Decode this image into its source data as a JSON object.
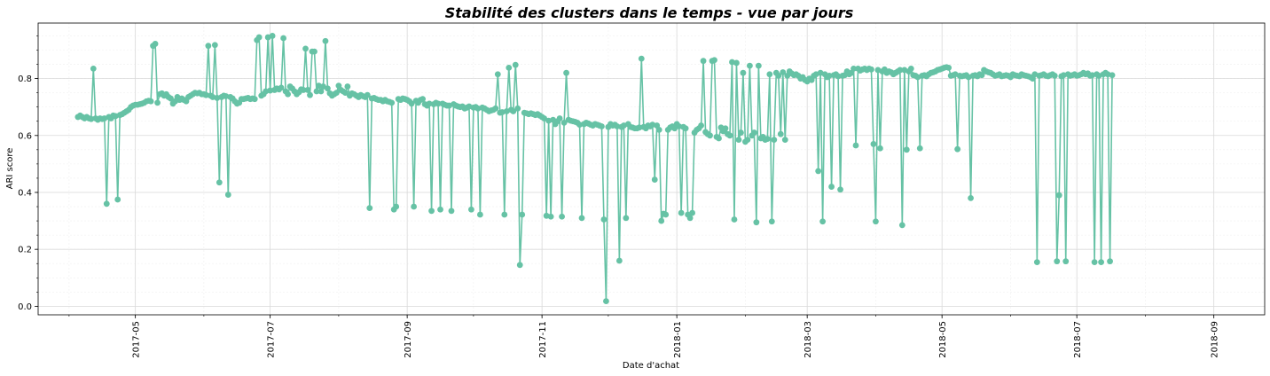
{
  "chart_data": {
    "type": "line",
    "title": "Stabilité des clusters dans le temps - vue par jours",
    "xlabel": "Date d'achat",
    "ylabel": "ARI score",
    "xlim": [
      "2017-03-18",
      "2018-09-24"
    ],
    "ylim": [
      -0.03,
      0.995
    ],
    "x_ticks": [
      "2017-05",
      "2017-07",
      "2017-09",
      "2017-11",
      "2018-01",
      "2018-03",
      "2018-05",
      "2018-07",
      "2018-09"
    ],
    "y_ticks": [
      "0.0",
      "0.2",
      "0.4",
      "0.6",
      "0.8"
    ],
    "grid": true,
    "legend": "none",
    "colors": {
      "series": "#66c2a5",
      "grid": "#d9d9d9",
      "axis": "#000000"
    },
    "series": [
      {
        "start_date": "2017-04-05",
        "values": [
          0.665,
          0.67,
          0.665,
          0.66,
          0.665,
          0.66,
          0.658,
          0.835,
          0.66,
          0.655,
          0.66,
          0.658,
          0.66,
          0.36,
          0.665,
          0.66,
          0.67,
          0.668,
          0.375,
          0.672,
          0.675,
          0.68,
          0.685,
          0.69,
          0.7,
          0.705,
          0.708,
          0.708,
          0.71,
          0.712,
          0.715,
          0.72,
          0.722,
          0.72,
          0.915,
          0.922,
          0.715,
          0.745,
          0.748,
          0.74,
          0.745,
          0.735,
          0.73,
          0.712,
          0.72,
          0.735,
          0.725,
          0.73,
          0.725,
          0.72,
          0.735,
          0.74,
          0.745,
          0.75,
          0.748,
          0.75,
          0.745,
          0.745,
          0.742,
          0.915,
          0.74,
          0.735,
          0.918,
          0.732,
          0.435,
          0.735,
          0.74,
          0.738,
          0.392,
          0.735,
          0.73,
          0.72,
          0.712,
          0.715,
          0.728,
          0.728,
          0.73,
          0.732,
          0.728,
          0.73,
          0.728,
          0.935,
          0.945,
          0.74,
          0.745,
          0.755,
          0.945,
          0.758,
          0.95,
          0.76,
          0.765,
          0.762,
          0.768,
          0.942,
          0.755,
          0.745,
          0.772,
          0.765,
          0.755,
          0.745,
          0.752,
          0.762,
          0.76,
          0.905,
          0.76,
          0.742,
          0.895,
          0.895,
          0.755,
          0.775,
          0.755,
          0.772,
          0.932,
          0.765,
          0.748,
          0.74,
          0.745,
          0.75,
          0.775,
          0.76,
          0.755,
          0.75,
          0.772,
          0.74,
          0.748,
          0.745,
          0.74,
          0.735,
          0.742,
          0.738,
          0.735,
          0.742,
          0.345,
          0.73,
          0.732,
          0.728,
          0.725,
          0.725,
          0.72,
          0.725,
          0.72,
          0.718,
          0.715,
          0.34,
          0.35,
          0.728,
          0.725,
          0.73,
          0.728,
          0.725,
          0.72,
          0.712,
          0.35,
          0.722,
          0.715,
          0.725,
          0.728,
          0.71,
          0.705,
          0.712,
          0.335,
          0.71,
          0.715,
          0.712,
          0.34,
          0.712,
          0.708,
          0.705,
          0.705,
          0.335,
          0.71,
          0.705,
          0.702,
          0.7,
          0.702,
          0.695,
          0.698,
          0.702,
          0.34,
          0.698,
          0.7,
          0.695,
          0.322,
          0.698,
          0.695,
          0.69,
          0.685,
          0.688,
          0.69,
          0.695,
          0.815,
          0.68,
          0.682,
          0.322,
          0.685,
          0.838,
          0.69,
          0.685,
          0.848,
          0.695,
          0.145,
          0.322,
          0.68,
          0.678,
          0.675,
          0.678,
          0.675,
          0.672,
          0.675,
          0.67,
          0.665,
          0.66,
          0.318,
          0.652,
          0.315,
          0.655,
          0.64,
          0.65,
          0.66,
          0.315,
          0.645,
          0.82,
          0.655,
          0.652,
          0.65,
          0.648,
          0.645,
          0.638,
          0.31,
          0.64,
          0.645,
          0.642,
          0.638,
          0.635,
          0.64,
          0.638,
          0.635,
          0.632,
          0.305,
          0.018,
          0.63,
          0.64,
          0.635,
          0.638,
          0.632,
          0.16,
          0.63,
          0.635,
          0.31,
          0.64,
          0.63,
          0.628,
          0.625,
          0.625,
          0.628,
          0.87,
          0.63,
          0.625,
          0.635,
          0.632,
          0.638,
          0.445,
          0.635,
          0.62,
          0.3,
          0.325,
          0.322,
          0.62,
          0.628,
          0.632,
          0.625,
          0.64,
          0.632,
          0.328,
          0.63,
          0.625,
          0.322,
          0.31,
          0.328,
          0.61,
          0.62,
          0.625,
          0.635,
          0.862,
          0.612,
          0.605,
          0.6,
          0.862,
          0.865,
          0.595,
          0.59,
          0.628,
          0.615,
          0.625,
          0.605,
          0.6,
          0.858,
          0.305,
          0.855,
          0.585,
          0.61,
          0.82,
          0.578,
          0.585,
          0.845,
          0.6,
          0.61,
          0.295,
          0.845,
          0.59,
          0.595,
          0.585,
          0.588,
          0.815,
          0.298,
          0.585,
          0.82,
          0.81,
          0.605,
          0.822,
          0.585,
          0.81,
          0.825,
          0.818,
          0.812,
          0.815,
          0.81,
          0.8,
          0.805,
          0.795,
          0.79,
          0.8,
          0.795,
          0.81,
          0.815,
          0.475,
          0.82,
          0.298,
          0.815,
          0.805,
          0.81,
          0.42,
          0.812,
          0.815,
          0.808,
          0.41,
          0.81,
          0.812,
          0.825,
          0.815,
          0.82,
          0.835,
          0.565,
          0.835,
          0.828,
          0.832,
          0.835,
          0.83,
          0.835,
          0.832,
          0.57,
          0.298,
          0.83,
          0.555,
          0.825,
          0.832,
          0.82,
          0.825,
          0.822,
          0.815,
          0.82,
          0.825,
          0.83,
          0.285,
          0.83,
          0.55,
          0.825,
          0.835,
          0.812,
          0.81,
          0.805,
          0.555,
          0.81,
          0.812,
          0.808,
          0.815,
          0.82,
          0.822,
          0.825,
          0.83,
          0.832,
          0.835,
          0.838,
          0.84,
          0.838,
          0.81,
          0.812,
          0.815,
          0.552,
          0.81,
          0.808,
          0.81,
          0.812,
          0.805,
          0.38,
          0.81,
          0.812,
          0.808,
          0.815,
          0.812,
          0.83,
          0.825,
          0.822,
          0.82,
          0.815,
          0.81,
          0.812,
          0.815,
          0.808,
          0.81,
          0.812,
          0.81,
          0.805,
          0.815,
          0.812,
          0.81,
          0.808,
          0.815,
          0.812,
          0.81,
          0.808,
          0.805,
          0.8,
          0.815,
          0.155,
          0.81,
          0.812,
          0.815,
          0.81,
          0.808,
          0.812,
          0.815,
          0.81,
          0.158,
          0.39,
          0.808,
          0.812,
          0.158,
          0.815,
          0.81,
          0.812,
          0.815,
          0.81,
          0.812,
          0.815,
          0.82,
          0.815,
          0.818,
          0.81,
          0.812,
          0.155,
          0.815,
          0.81,
          0.155,
          0.815,
          0.82,
          0.815,
          0.158,
          0.812
        ]
      }
    ]
  }
}
